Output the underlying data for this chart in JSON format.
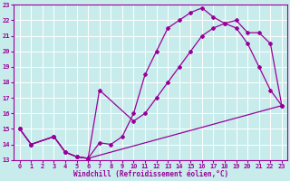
{
  "xlabel": "Windchill (Refroidissement éolien,°C)",
  "ylabel": "",
  "bg_color": "#c8ecec",
  "line_color": "#990099",
  "grid_color": "#ffffff",
  "xlim": [
    -0.5,
    23.5
  ],
  "ylim": [
    13,
    23
  ],
  "xticks": [
    0,
    1,
    2,
    3,
    4,
    5,
    6,
    7,
    8,
    9,
    10,
    11,
    12,
    13,
    14,
    15,
    16,
    17,
    18,
    19,
    20,
    21,
    22,
    23
  ],
  "yticks": [
    13,
    14,
    15,
    16,
    17,
    18,
    19,
    20,
    21,
    22,
    23
  ],
  "line1_x": [
    0,
    1,
    3,
    4,
    5,
    6,
    7,
    8,
    9,
    10,
    11,
    12,
    13,
    14,
    15,
    16,
    17,
    18,
    19,
    20,
    21,
    22,
    23
  ],
  "line1_y": [
    15,
    14,
    14.5,
    13.5,
    13.2,
    13.1,
    14.1,
    14.0,
    14.5,
    16.0,
    18.5,
    20.0,
    21.5,
    22.0,
    22.5,
    22.8,
    22.2,
    21.8,
    21.5,
    20.5,
    19.0,
    17.5,
    16.5
  ],
  "line2_x": [
    0,
    1,
    3,
    4,
    5,
    6,
    7,
    10,
    11,
    12,
    13,
    14,
    15,
    16,
    17,
    18,
    19,
    20,
    21,
    22,
    23
  ],
  "line2_y": [
    15,
    14,
    14.5,
    13.5,
    13.2,
    13.1,
    17.5,
    15.5,
    16.0,
    17.0,
    18.0,
    19.0,
    20.0,
    21.0,
    21.5,
    21.8,
    22.0,
    21.2,
    21.2,
    20.5,
    16.5
  ],
  "line3_x": [
    0,
    1,
    3,
    4,
    5,
    6,
    23
  ],
  "line3_y": [
    15,
    14,
    14.5,
    13.5,
    13.2,
    13.1,
    16.5
  ]
}
